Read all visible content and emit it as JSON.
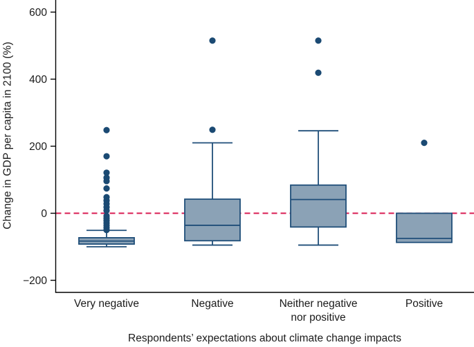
{
  "figure": {
    "background": "#ffffff"
  },
  "chart_data": {
    "type": "box",
    "title": "",
    "xlabel": "Respondents’ expectations about climate change impacts",
    "ylabel": "Change in GDP per capita in 2100 (%)",
    "ylim": [
      -236,
      636
    ],
    "yticks": [
      600,
      400,
      200,
      0,
      -200
    ],
    "ytick_labels": [
      "600",
      "400",
      "200",
      "0",
      "−200"
    ],
    "grid": false,
    "legend": null,
    "reference_line": {
      "y": 0,
      "style": "dashed"
    },
    "categories": [
      "Very negative",
      "Negative",
      "Neither negative nor positive",
      "Positive"
    ],
    "category_labels": [
      [
        "Very negative"
      ],
      [
        "Negative"
      ],
      [
        "Neither negative",
        "nor positive"
      ],
      [
        "Positive"
      ]
    ],
    "boxes": [
      {
        "category": "Very negative",
        "whisker_low": -100,
        "q1": -92,
        "median": -83,
        "q3": -73,
        "whisker_high": -51,
        "outliers": [
          248,
          170,
          121,
          106,
          96,
          74,
          48,
          38,
          28,
          18,
          8,
          -8,
          -15,
          -22,
          -29,
          -36,
          -43,
          -50
        ]
      },
      {
        "category": "Negative",
        "whisker_low": -95,
        "q1": -82,
        "median": -36,
        "q3": 42,
        "whisker_high": 210,
        "outliers": [
          515,
          249
        ]
      },
      {
        "category": "Neither negative nor positive",
        "whisker_low": -95,
        "q1": -41,
        "median": 41,
        "q3": 84,
        "whisker_high": 246,
        "outliers": [
          515,
          419
        ]
      },
      {
        "category": "Positive",
        "whisker_low": null,
        "q1": -87,
        "median": -75,
        "q3": 0,
        "whisker_high": null,
        "outliers": [
          210
        ]
      }
    ],
    "colors": {
      "box_fill": "#8ba2b6",
      "box_stroke": "#1f4e79",
      "outlier_fill": "#1b4a73",
      "reference_line": "#d91b52",
      "axis": "#000000",
      "text": "#1a1a1a"
    }
  }
}
